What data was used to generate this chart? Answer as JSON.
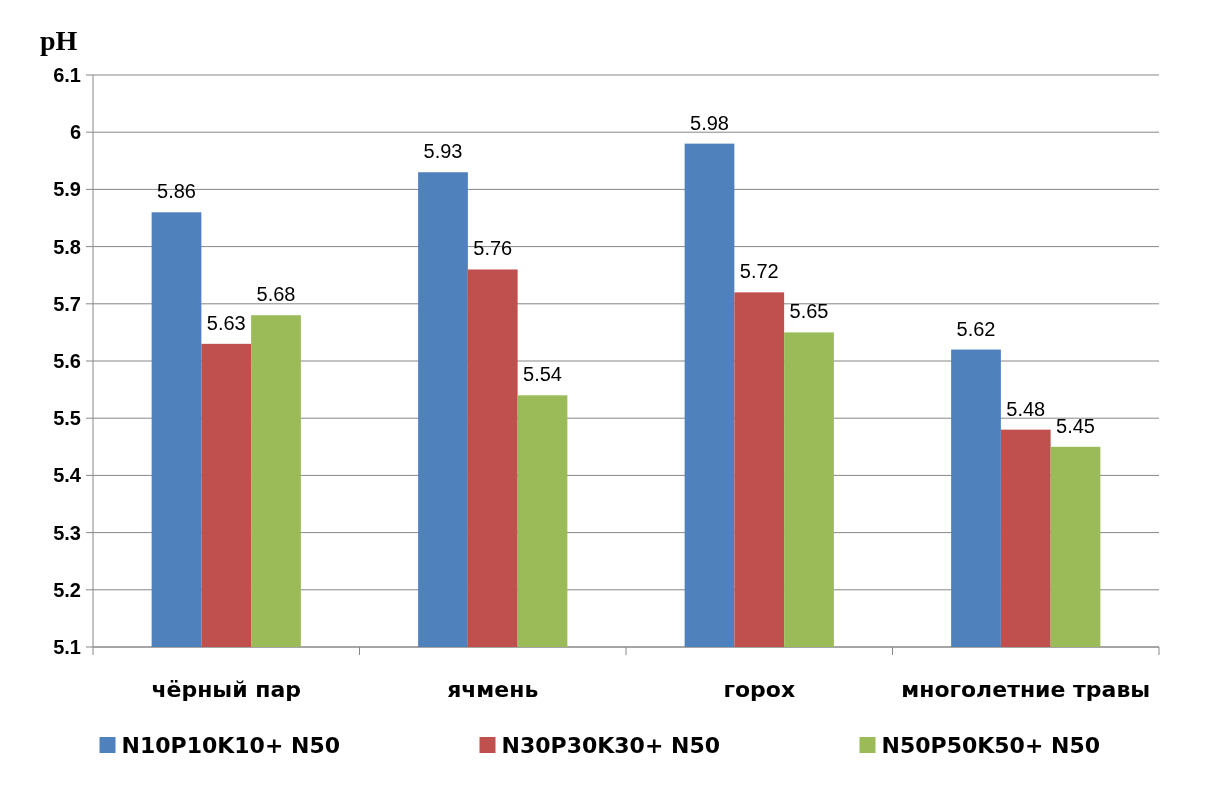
{
  "chart_data": {
    "type": "bar",
    "ylabel": "pH",
    "categories": [
      "чёрный пар",
      "ячмень",
      "горох",
      "многолетние травы"
    ],
    "series": [
      {
        "name": "N10P10K10+ N50",
        "color": "#4f81bd",
        "values": [
          5.86,
          5.93,
          5.98,
          5.62
        ]
      },
      {
        "name": "N30P30K30+ N50",
        "color": "#c0504d",
        "values": [
          5.63,
          5.76,
          5.72,
          5.48
        ]
      },
      {
        "name": "N50P50K50+ N50",
        "color": "#9bbb59",
        "values": [
          5.68,
          5.54,
          5.65,
          5.45
        ]
      }
    ],
    "ylim": [
      5.1,
      6.1
    ],
    "yticks": [
      5.1,
      5.2,
      5.3,
      5.4,
      5.5,
      5.6,
      5.7,
      5.8,
      5.9,
      6,
      6.1
    ],
    "grid": "y",
    "legend": "bottom",
    "data_labels": true
  }
}
